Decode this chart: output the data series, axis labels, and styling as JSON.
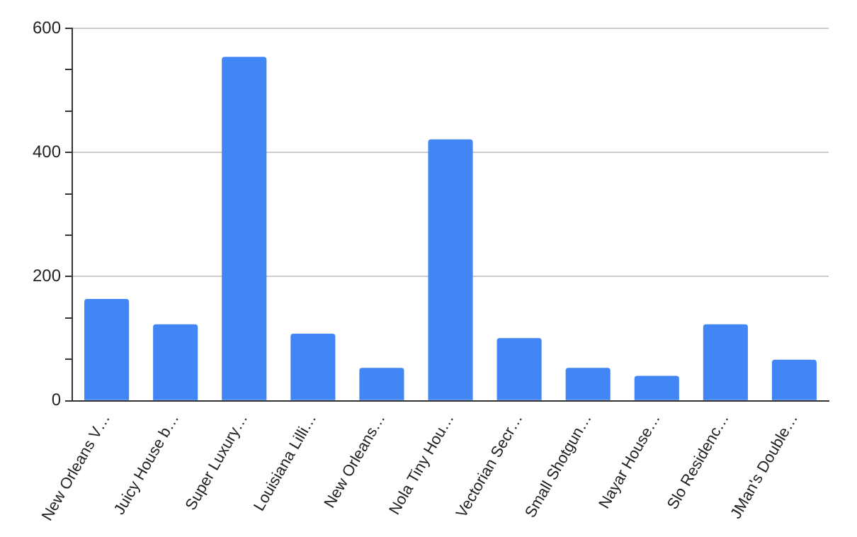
{
  "chart_data": {
    "type": "bar",
    "categories": [
      "New Orleans V…",
      "Juicy House b…",
      "Super Luxury…",
      "Louisiana Lilli…",
      "New Orleans…",
      "Nola Tiny Hou…",
      "Vectorian Secr…",
      "Small Shotgun…",
      "Nayar House…",
      "Slo Residenc…",
      "JMan's Double…"
    ],
    "values": [
      164,
      123,
      554,
      108,
      53,
      421,
      101,
      53,
      40,
      123,
      66
    ],
    "color": "#4285f4",
    "ylim": [
      0,
      600
    ],
    "yticks": [
      0,
      {
        "value": 66.7,
        "label": null
      },
      {
        "value": 133.3,
        "label": null
      },
      200,
      {
        "value": 266.7,
        "label": null
      },
      {
        "value": 333.3,
        "label": null
      },
      400,
      {
        "value": 466.7,
        "label": null
      },
      {
        "value": 533.3,
        "label": null
      },
      600
    ],
    "grid": "y",
    "legend": false
  }
}
